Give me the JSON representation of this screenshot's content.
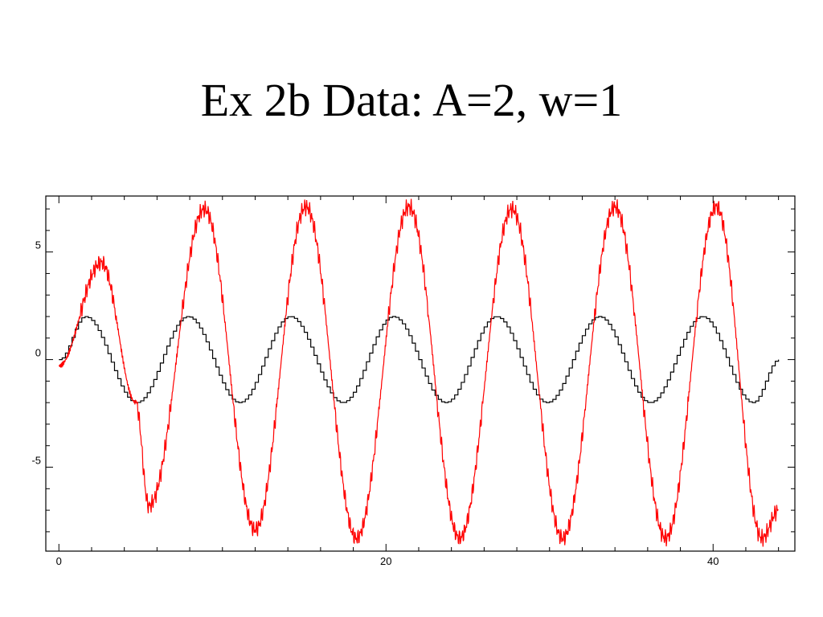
{
  "chart_data": {
    "type": "line",
    "title": "Ex 2b Data: A=2, w=1",
    "xlabel": "",
    "ylabel": "",
    "xlim": [
      -0.8,
      45
    ],
    "ylim": [
      -8.9,
      7.6
    ],
    "x_ticks": [
      0,
      20,
      40
    ],
    "y_ticks": [
      -5,
      0,
      5
    ],
    "grid": false,
    "legend": "none",
    "series": [
      {
        "color": "#000000",
        "style": "step",
        "x": [
          0,
          1.57,
          4.71,
          7.85,
          11.0,
          14.1,
          17.3,
          20.4,
          23.6,
          26.7,
          29.8,
          33.0,
          36.1,
          39.3,
          42.4,
          44.0
        ],
        "y": [
          0,
          2,
          -2,
          2,
          -2,
          2,
          -2,
          2,
          -2,
          2,
          -2,
          2,
          -2,
          2,
          -2,
          0
        ]
      },
      {
        "color": "#ff0000",
        "style": "noisy-line",
        "x": [
          0,
          2.6,
          4.7,
          5.5,
          8.9,
          12.0,
          15.1,
          18.2,
          21.4,
          24.5,
          27.7,
          30.8,
          34.0,
          37.1,
          40.2,
          43.0,
          44.0
        ],
        "y": [
          -0.3,
          4.5,
          -2.0,
          -6.8,
          7.0,
          -7.9,
          7.1,
          -8.3,
          7.1,
          -8.3,
          7.0,
          -8.3,
          7.1,
          -8.3,
          7.1,
          -8.3,
          -7.0
        ]
      }
    ]
  }
}
